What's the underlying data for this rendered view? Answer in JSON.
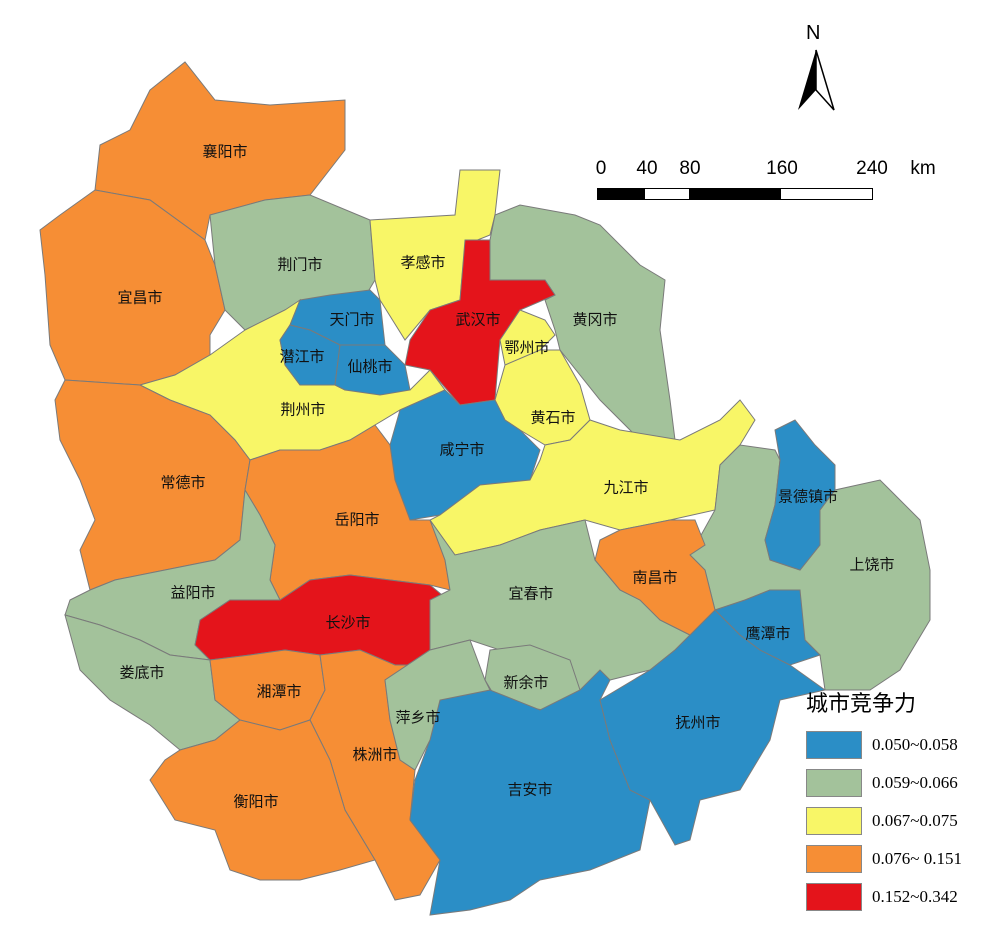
{
  "legend": {
    "title": "城市竞争力",
    "classes": [
      {
        "range": "0.050~0.058",
        "color": "#2B8EC6"
      },
      {
        "range": "0.059~0.066",
        "color": "#A3C29B"
      },
      {
        "range": "0.067~0.075",
        "color": "#F8F667"
      },
      {
        "range": "0.076~ 0.151",
        "color": "#F68E35"
      },
      {
        "range": "0.152~0.342",
        "color": "#E4141B"
      }
    ]
  },
  "north_arrow": {
    "label": "N",
    "icon": "north-arrow-icon"
  },
  "scale_bar": {
    "ticks": [
      "0",
      "40",
      "80",
      "160",
      "240"
    ],
    "unit": "km"
  },
  "cities": [
    {
      "name": "襄阳市",
      "class": 3
    },
    {
      "name": "宜昌市",
      "class": 3
    },
    {
      "name": "荆门市",
      "class": 1
    },
    {
      "name": "孝感市",
      "class": 2
    },
    {
      "name": "黄冈市",
      "class": 1
    },
    {
      "name": "荆州市",
      "class": 2
    },
    {
      "name": "天门市",
      "class": 0
    },
    {
      "name": "潜江市",
      "class": 0
    },
    {
      "name": "仙桃市",
      "class": 0
    },
    {
      "name": "武汉市",
      "class": 4
    },
    {
      "name": "鄂州市",
      "class": 2
    },
    {
      "name": "黄石市",
      "class": 2
    },
    {
      "name": "咸宁市",
      "class": 0
    },
    {
      "name": "九江市",
      "class": 2
    },
    {
      "name": "景德镇市",
      "class": 0
    },
    {
      "name": "上饶市",
      "class": 1
    },
    {
      "name": "南昌市",
      "class": 3
    },
    {
      "name": "鹰潭市",
      "class": 0
    },
    {
      "name": "抚州市",
      "class": 0
    },
    {
      "name": "宜春市",
      "class": 1
    },
    {
      "name": "新余市",
      "class": 1
    },
    {
      "name": "吉安市",
      "class": 0
    },
    {
      "name": "萍乡市",
      "class": 1
    },
    {
      "name": "常德市",
      "class": 3
    },
    {
      "name": "岳阳市",
      "class": 3
    },
    {
      "name": "益阳市",
      "class": 1
    },
    {
      "name": "长沙市",
      "class": 4
    },
    {
      "name": "娄底市",
      "class": 1
    },
    {
      "name": "湘潭市",
      "class": 3
    },
    {
      "name": "株洲市",
      "class": 3
    },
    {
      "name": "衡阳市",
      "class": 3
    }
  ]
}
